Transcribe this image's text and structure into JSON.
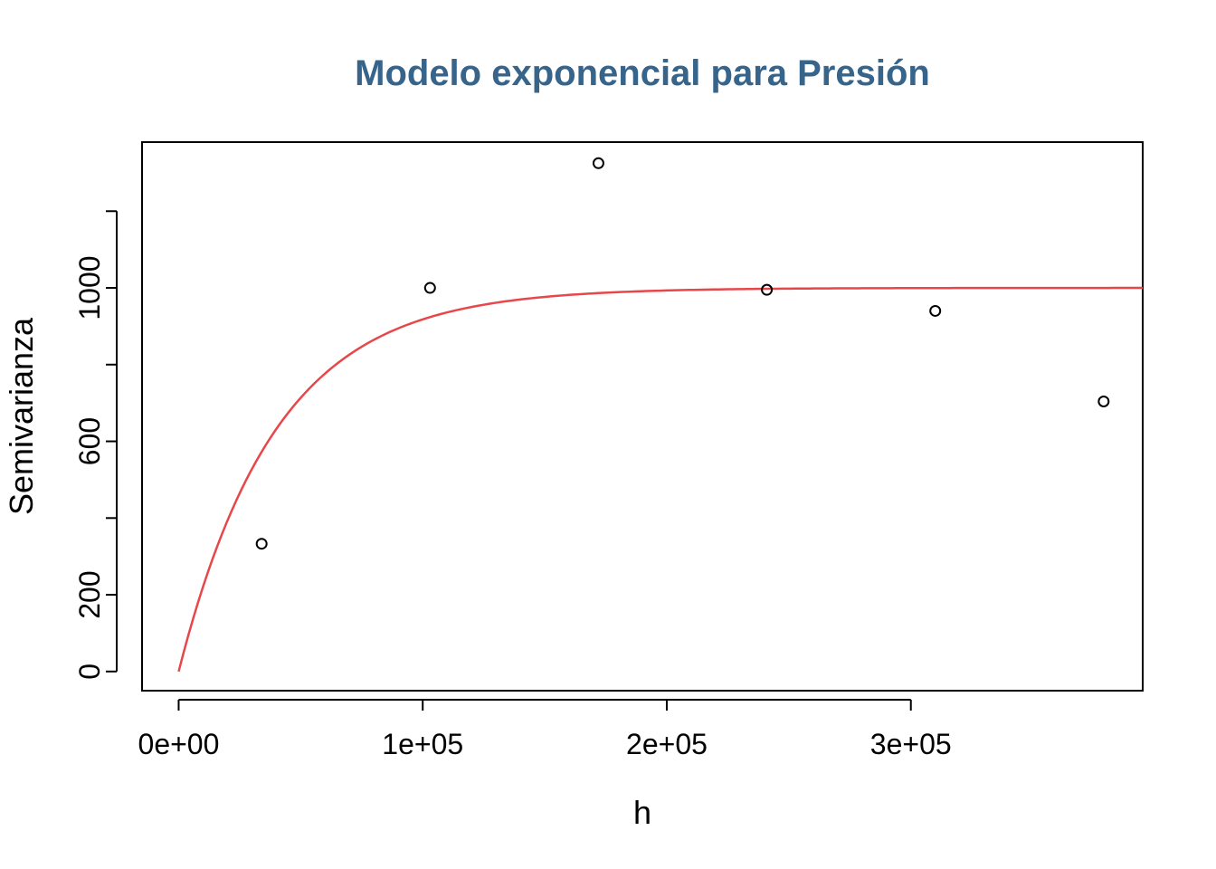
{
  "chart_data": {
    "type": "scatter",
    "title": "Modelo exponencial para Presión",
    "xlabel": "h",
    "ylabel": "Semivarianza",
    "xlim": [
      -15000,
      395000
    ],
    "ylim": [
      -50,
      1380
    ],
    "x_ticks": [
      0,
      100000,
      200000,
      300000
    ],
    "x_tick_labels": [
      "0e+00",
      "1e+05",
      "2e+05",
      "3e+05"
    ],
    "y_ticks": [
      0,
      200,
      400,
      600,
      800,
      1000,
      1200
    ],
    "y_tick_labels": [
      "0",
      "200",
      "",
      "600",
      "",
      "1000",
      ""
    ],
    "points": {
      "x": [
        34000,
        103000,
        172000,
        241000,
        310000,
        379000
      ],
      "y": [
        333,
        1000,
        1325,
        995,
        940,
        704
      ]
    },
    "model_curve": {
      "type": "exponential",
      "nugget": 0,
      "sill": 1000,
      "range": 40000,
      "x_max": 395000
    },
    "grid": false,
    "legend": "none",
    "colors": {
      "title": "#36648b",
      "curve": "#e8474a",
      "points": "#000000",
      "axes": "#000000"
    }
  }
}
